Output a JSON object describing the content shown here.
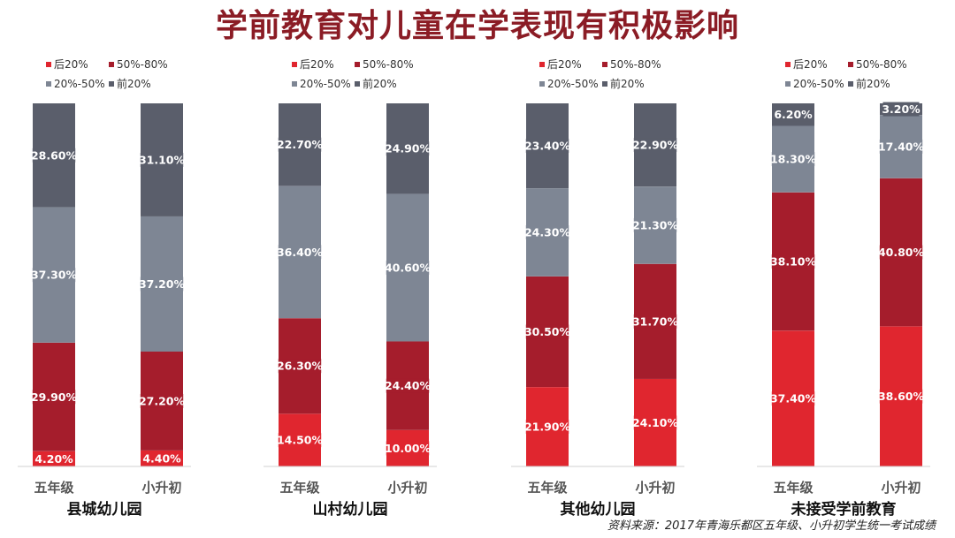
{
  "title": "学前教育对儿童在学表现有积极影响",
  "source": "资料来源：2017年青海乐都区五年级、小升初学生统一考试成绩",
  "legend": [
    {
      "name": "后20%",
      "color": "#e0262f"
    },
    {
      "name": "50%-80%",
      "color": "#a51d2c"
    },
    {
      "name": "20%-50%",
      "color": "#7e8694"
    },
    {
      "name": "前20%",
      "color": "#5a5e6b"
    }
  ],
  "chart_data": [
    {
      "type": "bar",
      "stacked": true,
      "title": "县城幼儿园",
      "categories": [
        "五年级",
        "小升初"
      ],
      "ylim": [
        0,
        100
      ],
      "series": [
        {
          "name": "后20%",
          "values": [
            4.2,
            4.4
          ],
          "labels": [
            "4.20%",
            "4.40%"
          ]
        },
        {
          "name": "50%-80%",
          "values": [
            29.9,
            27.2
          ],
          "labels": [
            "29.90%",
            "27.20%"
          ]
        },
        {
          "name": "20%-50%",
          "values": [
            37.3,
            37.2
          ],
          "labels": [
            "37.30%",
            "37.20%"
          ]
        },
        {
          "name": "前20%",
          "values": [
            28.6,
            31.1
          ],
          "labels": [
            "28.60%",
            "31.10%"
          ]
        }
      ]
    },
    {
      "type": "bar",
      "stacked": true,
      "title": "山村幼儿园",
      "categories": [
        "五年级",
        "小升初"
      ],
      "ylim": [
        0,
        100
      ],
      "series": [
        {
          "name": "后20%",
          "values": [
            14.5,
            10.0
          ],
          "labels": [
            "14.50%",
            "10.00%"
          ]
        },
        {
          "name": "50%-80%",
          "values": [
            26.3,
            24.4
          ],
          "labels": [
            "26.30%",
            "24.40%"
          ]
        },
        {
          "name": "20%-50%",
          "values": [
            36.4,
            40.6
          ],
          "labels": [
            "36.40%",
            "40.60%"
          ]
        },
        {
          "name": "前20%",
          "values": [
            22.7,
            24.9
          ],
          "labels": [
            "22.70%",
            "24.90%"
          ]
        }
      ]
    },
    {
      "type": "bar",
      "stacked": true,
      "title": "其他幼儿园",
      "categories": [
        "五年级",
        "小升初"
      ],
      "ylim": [
        0,
        100
      ],
      "series": [
        {
          "name": "后20%",
          "values": [
            21.9,
            24.1
          ],
          "labels": [
            "21.90%",
            "24.10%"
          ]
        },
        {
          "name": "50%-80%",
          "values": [
            30.5,
            31.7
          ],
          "labels": [
            "30.50%",
            "31.70%"
          ]
        },
        {
          "name": "20%-50%",
          "values": [
            24.3,
            21.3
          ],
          "labels": [
            "24.30%",
            "21.30%"
          ]
        },
        {
          "name": "前20%",
          "values": [
            23.4,
            22.9
          ],
          "labels": [
            "23.40%",
            "22.90%"
          ]
        }
      ]
    },
    {
      "type": "bar",
      "stacked": true,
      "title": "未接受学前教育",
      "categories": [
        "五年级",
        "小升初"
      ],
      "ylim": [
        0,
        100
      ],
      "series": [
        {
          "name": "后20%",
          "values": [
            37.4,
            38.6
          ],
          "labels": [
            "37.40%",
            "38.60%"
          ]
        },
        {
          "name": "50%-80%",
          "values": [
            38.1,
            40.8
          ],
          "labels": [
            "38.10%",
            "40.80%"
          ]
        },
        {
          "name": "20%-50%",
          "values": [
            18.3,
            17.4
          ],
          "labels": [
            "18.30%",
            "17.40%"
          ]
        },
        {
          "name": "前20%",
          "values": [
            6.2,
            3.2
          ],
          "labels": [
            "6.20%",
            "3.20%"
          ]
        }
      ]
    }
  ]
}
